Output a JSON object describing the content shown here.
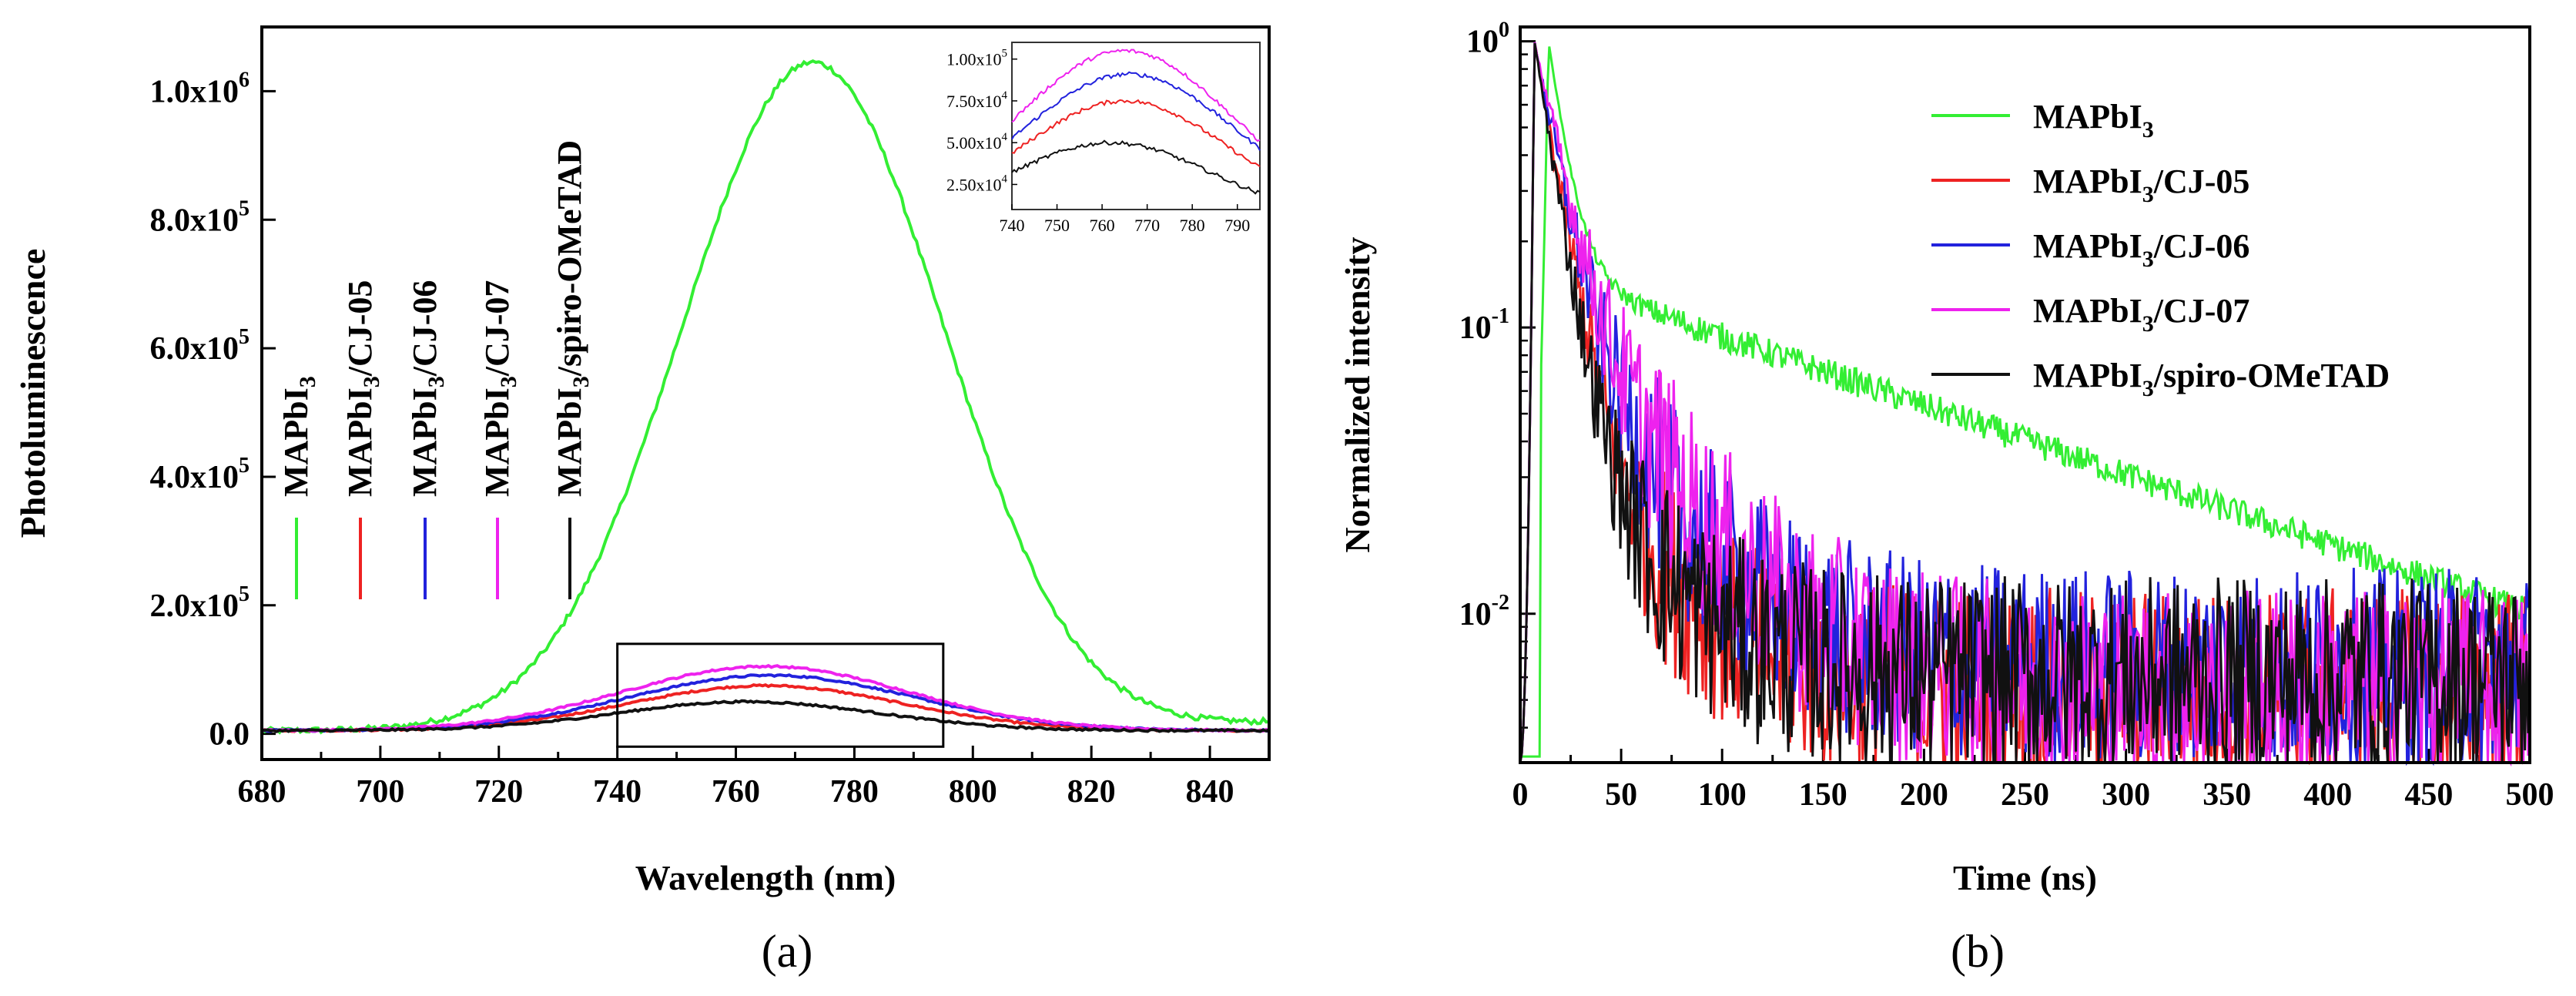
{
  "chart_data": [
    {
      "type": "line",
      "panel": "(a)",
      "xlabel": "Wavelength (nm)",
      "ylabel": "Photoluminescence",
      "xlim": [
        680,
        850
      ],
      "ylim": [
        -40000,
        1100000
      ],
      "x_ticks": [
        680,
        700,
        720,
        740,
        760,
        780,
        800,
        820,
        840
      ],
      "y_ticks": [
        {
          "value": 0,
          "label": "0.0",
          "exp": ""
        },
        {
          "value": 200000,
          "label": "2.0x10",
          "exp": "5"
        },
        {
          "value": 400000,
          "label": "4.0x10",
          "exp": "5"
        },
        {
          "value": 600000,
          "label": "6.0x10",
          "exp": "5"
        },
        {
          "value": 800000,
          "label": "8.0x10",
          "exp": "5"
        },
        {
          "value": 1000000,
          "label": "1.0x10",
          "exp": "6"
        }
      ],
      "legend_position": "left, rotated vertical",
      "series": [
        {
          "name": "MAPbI3",
          "label_main": "MAPbI",
          "label_sub": "3",
          "label_rest": "",
          "color": "#33ee33",
          "peak": 1040000,
          "center": 773,
          "sigma": 22
        },
        {
          "name": "MAPbI3/CJ-05",
          "label_main": "MAPbI",
          "label_sub": "3",
          "label_rest": "/CJ-05",
          "color": "#ee2222",
          "peak": 70000,
          "center": 765,
          "sigma": 23
        },
        {
          "name": "MAPbI3/CJ-06",
          "label_main": "MAPbI",
          "label_sub": "3",
          "label_rest": "/CJ-06",
          "color": "#2222dd",
          "peak": 86000,
          "center": 766,
          "sigma": 24
        },
        {
          "name": "MAPbI3/CJ-07",
          "label_main": "MAPbI",
          "label_sub": "3",
          "label_rest": "/CJ-07",
          "color": "#ee22ee",
          "peak": 100000,
          "center": 765,
          "sigma": 24
        },
        {
          "name": "MAPbI3/spiro-OMeTAD",
          "label_main": "MAPbI",
          "label_sub": "3",
          "label_rest": "/spiro-OMeTAD",
          "color": "#111111",
          "peak": 45000,
          "center": 762,
          "sigma": 22
        }
      ],
      "zoom_box": {
        "x": [
          740,
          795
        ],
        "y": [
          -20000,
          140000
        ]
      },
      "inset": {
        "xlim": [
          740,
          795
        ],
        "ylim": [
          10000,
          110000
        ],
        "x_ticks": [
          740,
          750,
          760,
          770,
          780,
          790
        ],
        "y_ticks": [
          {
            "value": 25000,
            "label": "2.50x10",
            "exp": "4"
          },
          {
            "value": 50000,
            "label": "5.00x10",
            "exp": "4"
          },
          {
            "value": 75000,
            "label": "7.50x10",
            "exp": "4"
          },
          {
            "value": 100000,
            "label": "1.00x10",
            "exp": "5"
          }
        ]
      }
    },
    {
      "type": "line",
      "panel": "(b)",
      "xlabel": "Time (ns)",
      "ylabel": "Normalized intensity",
      "xlim": [
        0,
        500
      ],
      "ylim_log10": [
        -2.52,
        0.05
      ],
      "yscale": "log",
      "x_ticks": [
        0,
        50,
        100,
        150,
        200,
        250,
        300,
        350,
        400,
        450,
        500
      ],
      "y_ticks": [
        {
          "value": 1,
          "label": "10",
          "exp": "0"
        },
        {
          "value": 0.1,
          "label": "10",
          "exp": "-1"
        },
        {
          "value": 0.01,
          "label": "10",
          "exp": "-2"
        }
      ],
      "legend_position": "top-right",
      "series": [
        {
          "name": "MAPbI3",
          "label_main": "MAPbI",
          "label_sub": "3",
          "label_rest": "",
          "color": "#33ee33",
          "peak_t": 14,
          "fast_amp": 0.85,
          "tau_fast": 8,
          "slow_amp": 0.15,
          "tau_slow": 180,
          "floor": 0.0
        },
        {
          "name": "MAPbI3/CJ-05",
          "label_main": "MAPbI",
          "label_sub": "3",
          "label_rest": "/CJ-05",
          "color": "#ee2222",
          "peak_t": 7,
          "fast_amp": 0.95,
          "tau_fast": 10,
          "slow_amp": 0.05,
          "tau_slow": 35,
          "floor": 0.0055
        },
        {
          "name": "MAPbI3/CJ-06",
          "label_main": "MAPbI",
          "label_sub": "3",
          "label_rest": "/CJ-06",
          "color": "#2222dd",
          "peak_t": 7,
          "fast_amp": 0.9,
          "tau_fast": 11,
          "slow_amp": 0.1,
          "tau_slow": 38,
          "floor": 0.0065
        },
        {
          "name": "MAPbI3/CJ-07",
          "label_main": "MAPbI",
          "label_sub": "3",
          "label_rest": "/CJ-07",
          "color": "#ee22ee",
          "peak_t": 7,
          "fast_amp": 0.88,
          "tau_fast": 12,
          "slow_amp": 0.12,
          "tau_slow": 40,
          "floor": 0.0055
        },
        {
          "name": "MAPbI3/spiro-OMeTAD",
          "label_main": "MAPbI",
          "label_sub": "3",
          "label_rest": "/spiro-OMeTAD",
          "color": "#111111",
          "peak_t": 7,
          "fast_amp": 0.95,
          "tau_fast": 9,
          "slow_amp": 0.05,
          "tau_slow": 33,
          "floor": 0.006
        }
      ]
    }
  ]
}
